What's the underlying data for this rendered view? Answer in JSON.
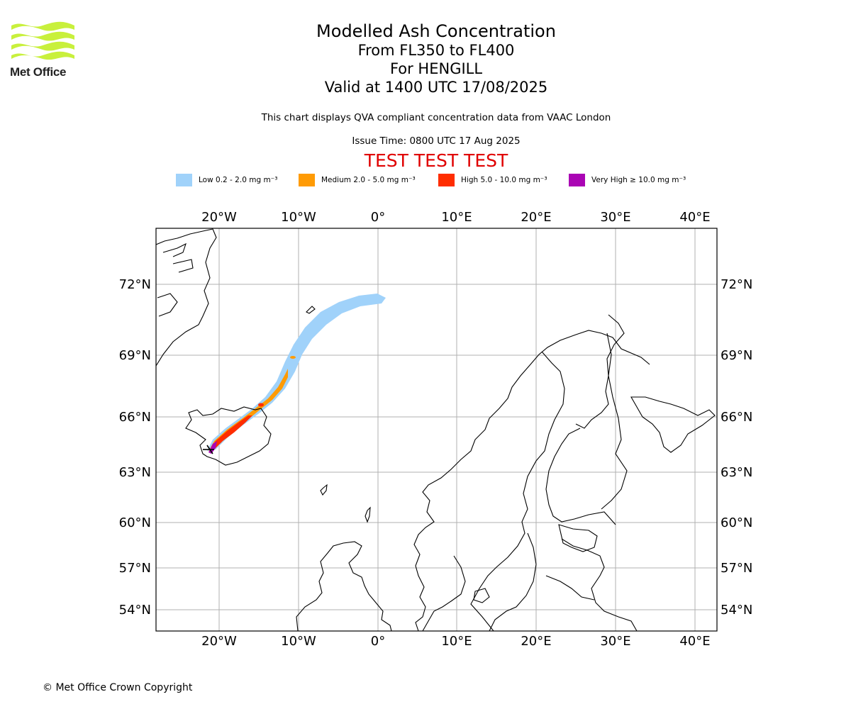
{
  "logo": {
    "name": "Met Office",
    "brand_color": "#c8f03c"
  },
  "title": {
    "line1": "Modelled Ash Concentration",
    "line2": "From FL350 to FL400",
    "line3": "For HENGILL",
    "line4": "Valid at 1400 UTC 17/08/2025"
  },
  "subtitle": "This chart displays QVA compliant concentration data from VAAC London",
  "issue_time": "Issue Time: 0800 UTC 17 Aug 2025",
  "test_banner": "TEST TEST TEST",
  "legend": [
    {
      "label": "Low 0.2 - 2.0 mg m⁻³",
      "color": "#a0d2fa"
    },
    {
      "label": "Medium 2.0 - 5.0 mg m⁻³",
      "color": "#ff9b05"
    },
    {
      "label": "High 5.0 - 10.0 mg m⁻³",
      "color": "#ff2d00"
    },
    {
      "label": "Very High ≥ 10.0 mg m⁻³",
      "color": "#aa05b4"
    }
  ],
  "map": {
    "lon_ticks": [
      "20°W",
      "10°W",
      "0°",
      "10°E",
      "20°E",
      "30°E",
      "40°E"
    ],
    "lat_ticks": [
      "72°N",
      "69°N",
      "66°N",
      "63°N",
      "60°N",
      "57°N",
      "54°N"
    ],
    "gridlines": true,
    "volcano": "HENGILL"
  },
  "copyright": "© Met Office Crown Copyright"
}
